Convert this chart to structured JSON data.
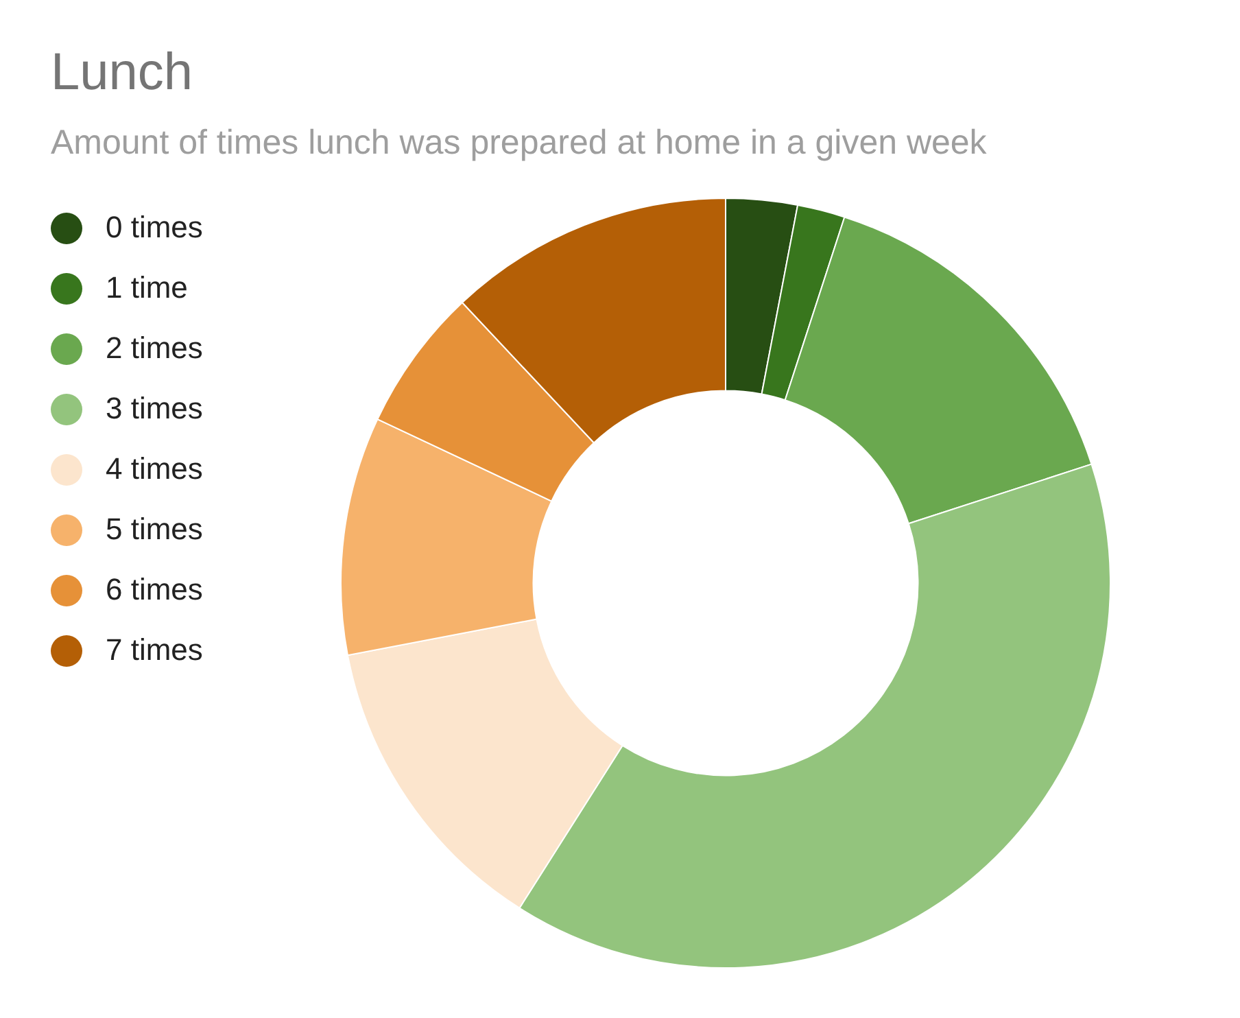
{
  "chart_data": {
    "type": "donut",
    "title": "Lunch",
    "subtitle": "Amount of times lunch was prepared at home in a given week",
    "categories": [
      "0 times",
      "1 time",
      "2 times",
      "3 times",
      "4 times",
      "5 times",
      "6 times",
      "7 times"
    ],
    "values": [
      3,
      2,
      15,
      39,
      13,
      10,
      6,
      12
    ],
    "colors": [
      "#274e13",
      "#38761d",
      "#6aa84f",
      "#93c47d",
      "#fce5cd",
      "#f6b26b",
      "#e69138",
      "#b45f06"
    ],
    "legend": "left"
  }
}
